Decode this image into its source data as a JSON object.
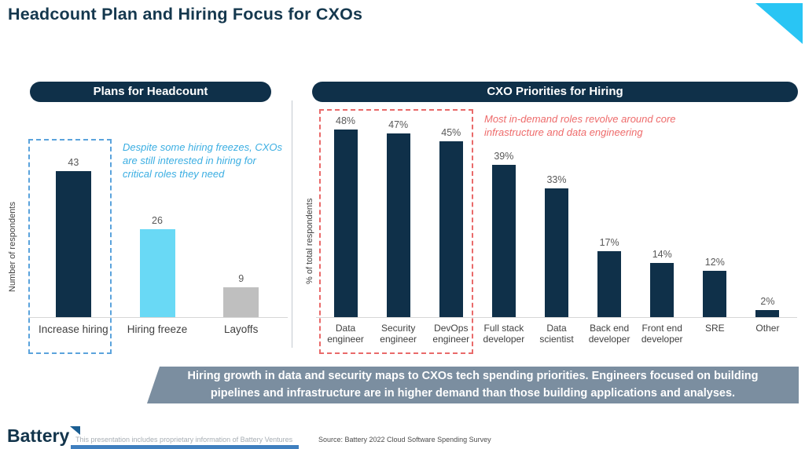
{
  "title": "Headcount Plan and Hiring Focus for CXOs",
  "banner": {
    "text": "Hiring growth in data and security maps to CXOs tech spending priorities. Engineers focused on building pipelines and infrastructure are in higher demand than those building applications and analyses."
  },
  "footer": {
    "logo_text": "Battery",
    "disclaimer": "This presentation includes proprietary information of Battery Ventures",
    "source": "Source: Battery 2022 Cloud Software Spending Survey"
  },
  "colors": {
    "navy": "#0f3049",
    "cyan_accent": "#29c5f4",
    "light_cyan_bar": "#69d9f5",
    "gray_bar": "#bfbfbf",
    "blue_dashed": "#5ba3dc",
    "blue_annotation": "#3baee2",
    "red_dashed": "#e96a6a",
    "red_annotation": "#ee6b6b",
    "banner_bg": "#7b8ea0",
    "value_label": "#595959"
  },
  "chart_data": [
    {
      "type": "bar",
      "title": "Plans for Headcount",
      "ylabel": "Number of respondents",
      "categories": [
        "Increase hiring",
        "Hiring freeze",
        "Layoffs"
      ],
      "values": [
        43,
        26,
        9
      ],
      "labels": [
        "43",
        "26",
        "9"
      ],
      "colors": [
        "#0f3049",
        "#69d9f5",
        "#bfbfbf"
      ],
      "ylim": [
        0,
        48
      ],
      "grid": false,
      "legend": "none",
      "annotation": "Despite some hiring freezes, CXOs are still interested in hiring for critical roles they need",
      "highlight_box": {
        "style": "dashed",
        "color": "#5ba3dc",
        "around": [
          "Increase hiring"
        ]
      }
    },
    {
      "type": "bar",
      "title": "CXO Priorities for Hiring",
      "ylabel": "% of total respondents",
      "categories": [
        "Data engineer",
        "Security engineer",
        "DevOps engineer",
        "Full stack developer",
        "Data scientist",
        "Back end developer",
        "Front end developer",
        "SRE",
        "Other"
      ],
      "values": [
        48,
        47,
        45,
        39,
        33,
        17,
        14,
        12,
        2
      ],
      "labels": [
        "48%",
        "47%",
        "45%",
        "39%",
        "33%",
        "17%",
        "14%",
        "12%",
        "2%"
      ],
      "bar_color": "#0f3049",
      "unit": "%",
      "ylim": [
        0,
        50
      ],
      "grid": false,
      "legend": "none",
      "annotation": "Most in-demand roles revolve around core infrastructure and data engineering",
      "highlight_box": {
        "style": "dashed",
        "color": "#e96a6a",
        "around": [
          "Data engineer",
          "Security engineer",
          "DevOps engineer"
        ]
      }
    }
  ]
}
